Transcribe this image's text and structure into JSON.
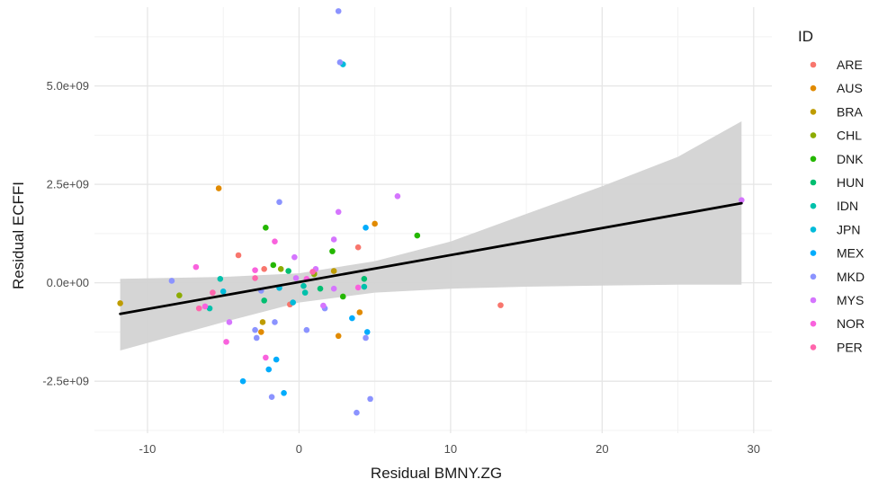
{
  "chart_data": {
    "type": "scatter",
    "xlabel": "Residual BMNY.ZG",
    "ylabel": "Residual ECFFI",
    "xlim": [
      -13.5,
      31.2
    ],
    "ylim": [
      -3820000000.0,
      7000000000.0
    ],
    "x_ticks": [
      -10,
      0,
      10,
      20,
      30
    ],
    "x_tick_labels": [
      "-10",
      "0",
      "10",
      "20",
      "30"
    ],
    "y_ticks": [
      -2500000000.0,
      0,
      2500000000.0,
      5000000000.0
    ],
    "y_tick_labels": [
      "-2.5e+09",
      "0.0e+00",
      "2.5e+09",
      "5.0e+09"
    ],
    "grid": true,
    "legend": {
      "title": "ID",
      "placement": "right"
    },
    "regression": {
      "line": [
        [
          -11.8,
          -790000000.0
        ],
        [
          29.2,
          2020000000.0
        ]
      ],
      "ribbon_upper": [
        [
          -11.8,
          100000000.0
        ],
        [
          -5,
          150000000.0
        ],
        [
          0,
          240000000.0
        ],
        [
          5,
          550000000.0
        ],
        [
          10,
          1050000000.0
        ],
        [
          15,
          1750000000.0
        ],
        [
          20,
          2450000000.0
        ],
        [
          25,
          3200000000.0
        ],
        [
          29.2,
          4100000000.0
        ]
      ],
      "ribbon_lower": [
        [
          -11.8,
          -1720000000.0
        ],
        [
          -5,
          -1000000000.0
        ],
        [
          0,
          -500000000.0
        ],
        [
          5,
          -250000000.0
        ],
        [
          10,
          -150000000.0
        ],
        [
          15,
          -100000000.0
        ],
        [
          20,
          -70000000.0
        ],
        [
          25,
          -50000000.0
        ],
        [
          29.2,
          -50000000.0
        ]
      ],
      "line_color": "#000000",
      "ribbon_color": "#d3d3d3"
    },
    "series": [
      {
        "name": "ARE",
        "color": "#F8766D",
        "points": [
          [
            -4.0,
            700000000.0
          ],
          [
            3.9,
            900000000.0
          ],
          [
            13.3,
            -570000000.0
          ],
          [
            -0.6,
            -550000000.0
          ],
          [
            -2.3,
            350000000.0
          ],
          [
            1.0,
            250000000.0
          ]
        ]
      },
      {
        "name": "AUS",
        "color": "#E18A00",
        "points": [
          [
            -5.3,
            2400000000.0
          ],
          [
            5.0,
            1500000000.0
          ],
          [
            2.6,
            -1350000000.0
          ],
          [
            4.0,
            -750000000.0
          ],
          [
            -2.5,
            -1250000000.0
          ]
        ]
      },
      {
        "name": "BRA",
        "color": "#BE9C00",
        "points": [
          [
            -11.8,
            -520000000.0
          ],
          [
            -2.4,
            -1000000000.0
          ],
          [
            2.3,
            300000000.0
          ]
        ]
      },
      {
        "name": "CHL",
        "color": "#8CAB00",
        "points": [
          [
            -7.9,
            -320000000.0
          ],
          [
            -1.2,
            350000000.0
          ],
          [
            1.0,
            220000000.0
          ]
        ]
      },
      {
        "name": "DNK",
        "color": "#24B700",
        "points": [
          [
            -2.2,
            1400000000.0
          ],
          [
            7.8,
            1200000000.0
          ],
          [
            2.2,
            800000000.0
          ],
          [
            -1.7,
            450000000.0
          ],
          [
            2.9,
            -350000000.0
          ]
        ]
      },
      {
        "name": "HUN",
        "color": "#00BE70",
        "points": [
          [
            -2.3,
            -450000000.0
          ],
          [
            4.3,
            100000000.0
          ],
          [
            1.4,
            -150000000.0
          ],
          [
            -0.7,
            300000000.0
          ]
        ]
      },
      {
        "name": "IDN",
        "color": "#00C1AB",
        "points": [
          [
            -5.9,
            -650000000.0
          ],
          [
            -5.2,
            100000000.0
          ],
          [
            4.3,
            -100000000.0
          ],
          [
            0.4,
            -250000000.0
          ],
          [
            0.3,
            -80000000.0
          ]
        ]
      },
      {
        "name": "JPN",
        "color": "#00BBDA",
        "points": [
          [
            -5.0,
            -220000000.0
          ],
          [
            -1.3,
            -130000000.0
          ],
          [
            -0.4,
            -500000000.0
          ],
          [
            2.9,
            5550000000.0
          ]
        ]
      },
      {
        "name": "MEX",
        "color": "#00ACFC",
        "points": [
          [
            -3.7,
            -2500000000.0
          ],
          [
            -2.0,
            -2200000000.0
          ],
          [
            -1.5,
            -1950000000.0
          ],
          [
            -1.0,
            -2800000000.0
          ],
          [
            4.4,
            1400000000.0
          ],
          [
            4.5,
            -1250000000.0
          ],
          [
            3.5,
            -900000000.0
          ]
        ]
      },
      {
        "name": "MKD",
        "color": "#8B93FF",
        "points": [
          [
            -8.4,
            50000000.0
          ],
          [
            -1.3,
            2050000000.0
          ],
          [
            -2.9,
            -1200000000.0
          ],
          [
            -2.8,
            -1400000000.0
          ],
          [
            -1.8,
            -2900000000.0
          ],
          [
            -1.6,
            -1000000000.0
          ],
          [
            0.5,
            -1200000000.0
          ],
          [
            2.6,
            6900000000.0
          ],
          [
            2.7,
            5600000000.0
          ],
          [
            4.4,
            -1400000000.0
          ],
          [
            3.8,
            -3300000000.0
          ],
          [
            4.7,
            -2950000000.0
          ],
          [
            1.7,
            -650000000.0
          ],
          [
            -2.5,
            -200000000.0
          ]
        ]
      },
      {
        "name": "MYS",
        "color": "#D575FE",
        "points": [
          [
            6.5,
            2200000000.0
          ],
          [
            29.2,
            2100000000.0
          ],
          [
            2.6,
            1800000000.0
          ],
          [
            2.3,
            1100000000.0
          ],
          [
            -0.3,
            650000000.0
          ],
          [
            1.1,
            350000000.0
          ],
          [
            2.3,
            -150000000.0
          ],
          [
            -0.2,
            120000000.0
          ],
          [
            -4.6,
            -1000000000.0
          ],
          [
            1.6,
            -580000000.0
          ]
        ]
      },
      {
        "name": "NOR",
        "color": "#F962DD",
        "points": [
          [
            -1.6,
            1050000000.0
          ],
          [
            -6.8,
            400000000.0
          ],
          [
            -2.9,
            320000000.0
          ],
          [
            -2.2,
            -1900000000.0
          ],
          [
            -4.8,
            -1500000000.0
          ],
          [
            0.5,
            100000000.0
          ],
          [
            3.9,
            -120000000.0
          ],
          [
            -6.2,
            -600000000.0
          ]
        ]
      },
      {
        "name": "PER",
        "color": "#FF65AC",
        "points": [
          [
            -6.6,
            -650000000.0
          ],
          [
            -2.9,
            120000000.0
          ],
          [
            -5.7,
            -250000000.0
          ],
          [
            0.9,
            280000000.0
          ]
        ]
      }
    ]
  }
}
